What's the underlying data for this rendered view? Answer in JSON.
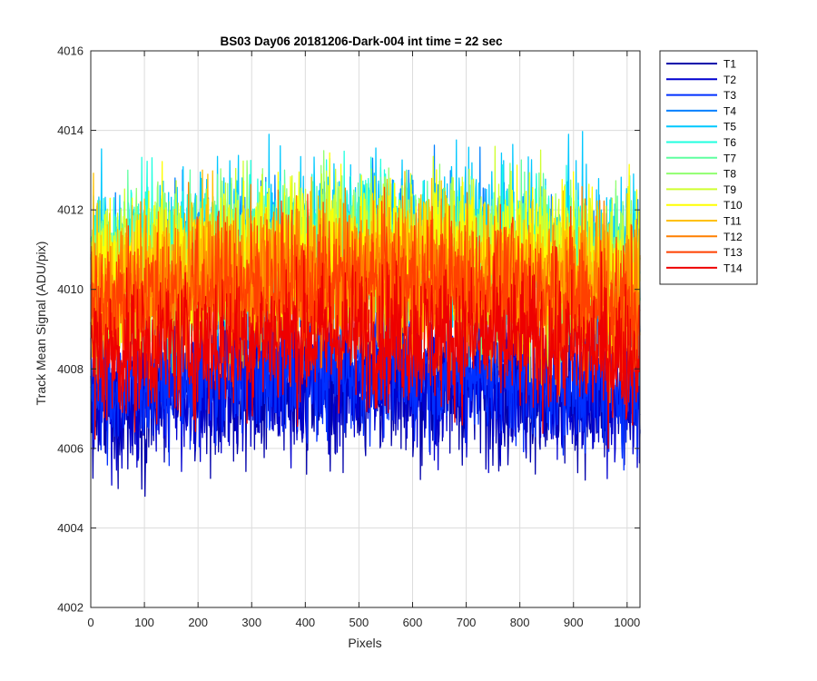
{
  "chart_data": {
    "type": "line",
    "title": "BS03 Day06 20181206-Dark-004 int time = 22 sec",
    "xlabel": "Pixels",
    "ylabel": "Track Mean Signal (ADU/pix)",
    "xlim": [
      0,
      1024
    ],
    "ylim": [
      4002,
      4016
    ],
    "xticks": [
      0,
      100,
      200,
      300,
      400,
      500,
      600,
      700,
      800,
      900,
      1000
    ],
    "yticks": [
      4002,
      4004,
      4006,
      4008,
      4010,
      4012,
      4014,
      4016
    ],
    "grid": true,
    "legend_location": "outside-top-right",
    "n_points": 1024,
    "series": [
      {
        "name": "T1",
        "color": "#0000AA",
        "mean": 4007.3,
        "noise": 0.85
      },
      {
        "name": "T2",
        "color": "#0000D0",
        "mean": 4007.5,
        "noise": 0.85
      },
      {
        "name": "T3",
        "color": "#0030FF",
        "mean": 4007.8,
        "noise": 0.85
      },
      {
        "name": "T4",
        "color": "#0080FF",
        "mean": 4010.5,
        "noise": 1.05
      },
      {
        "name": "T5",
        "color": "#00C8FF",
        "mean": 4011.0,
        "noise": 1.05
      },
      {
        "name": "T6",
        "color": "#20FFDF",
        "mean": 4010.8,
        "noise": 1.0
      },
      {
        "name": "T7",
        "color": "#60FFA0",
        "mean": 4010.5,
        "noise": 1.0
      },
      {
        "name": "T8",
        "color": "#90FF70",
        "mean": 4010.6,
        "noise": 1.0
      },
      {
        "name": "T9",
        "color": "#CFFF30",
        "mean": 4010.7,
        "noise": 1.0
      },
      {
        "name": "T10",
        "color": "#FFFF00",
        "mean": 4010.6,
        "noise": 1.0
      },
      {
        "name": "T11",
        "color": "#FFC000",
        "mean": 4010.3,
        "noise": 1.0
      },
      {
        "name": "T12",
        "color": "#FF8000",
        "mean": 4010.0,
        "noise": 1.0
      },
      {
        "name": "T13",
        "color": "#FF4000",
        "mean": 4009.8,
        "noise": 0.95
      },
      {
        "name": "T14",
        "color": "#EE0000",
        "mean": 4008.6,
        "noise": 0.9
      }
    ]
  }
}
